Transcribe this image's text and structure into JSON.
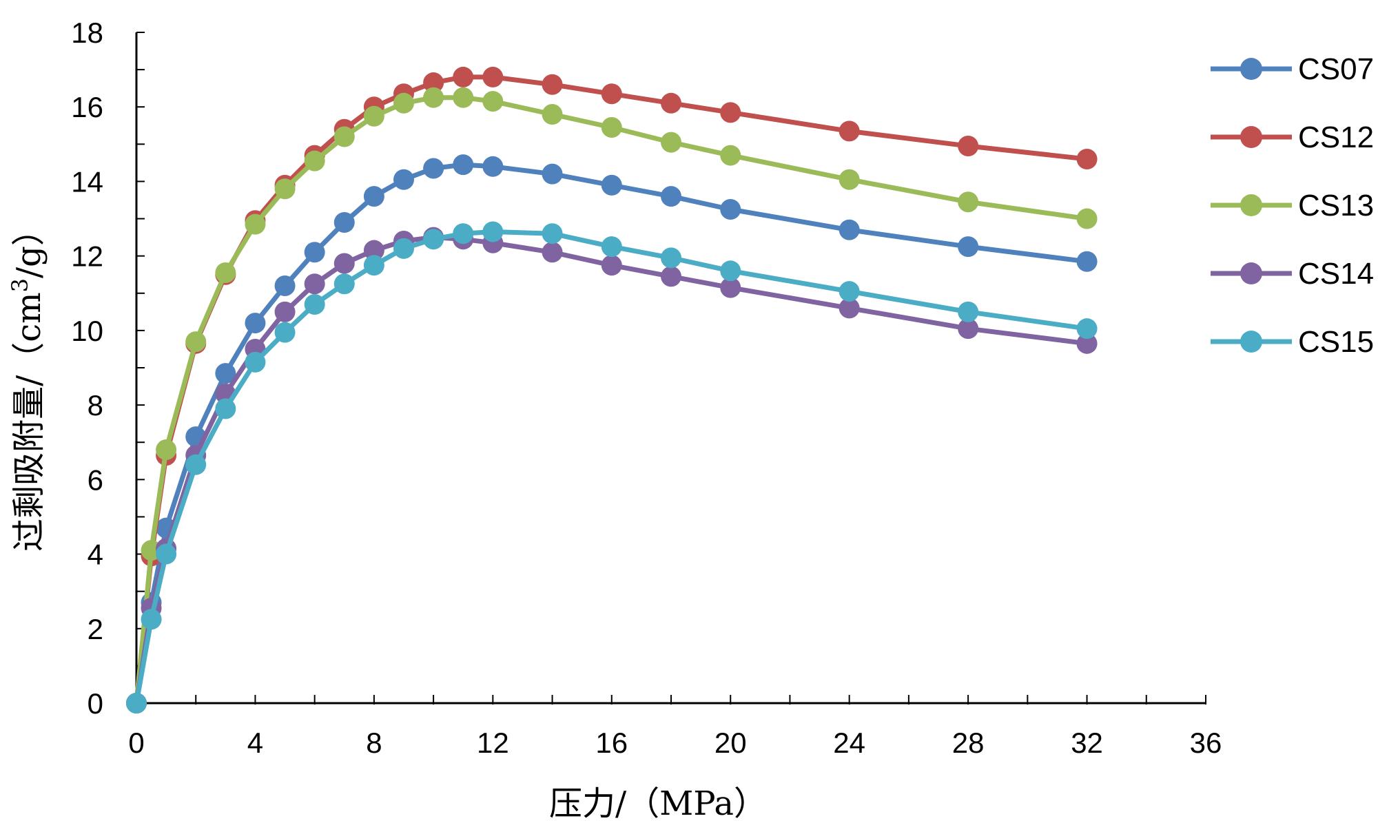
{
  "chart_data": {
    "type": "line",
    "xlabel": "压力/（MPa）",
    "ylabel_main": "过剩吸附量/（cm",
    "ylabel_sup": "3",
    "ylabel_tail": "/g）",
    "xlim": [
      0,
      36
    ],
    "ylim": [
      0,
      18
    ],
    "xticks": [
      0,
      4,
      8,
      12,
      16,
      20,
      24,
      28,
      32,
      36
    ],
    "yticks": [
      0,
      2,
      4,
      6,
      8,
      10,
      12,
      14,
      16,
      18
    ],
    "x": [
      0,
      0.5,
      1,
      2,
      3,
      4,
      5,
      6,
      7,
      8,
      9,
      10,
      11,
      12,
      14,
      16,
      18,
      20,
      24,
      28,
      32
    ],
    "series": [
      {
        "name": "CS07",
        "color": "#4F81BD",
        "values": [
          0,
          2.7,
          4.7,
          7.15,
          8.85,
          10.2,
          11.2,
          12.1,
          12.9,
          13.6,
          14.05,
          14.35,
          14.45,
          14.4,
          14.2,
          13.9,
          13.6,
          13.25,
          12.7,
          12.25,
          11.85
        ]
      },
      {
        "name": "CS12",
        "color": "#C0504D",
        "values": [
          0,
          3.95,
          6.65,
          9.65,
          11.5,
          12.95,
          13.9,
          14.7,
          15.4,
          16.0,
          16.35,
          16.65,
          16.8,
          16.8,
          16.6,
          16.35,
          16.1,
          15.85,
          15.35,
          14.95,
          14.6
        ]
      },
      {
        "name": "CS13",
        "color": "#9BBB59",
        "values": [
          0,
          4.1,
          6.8,
          9.7,
          11.55,
          12.85,
          13.8,
          14.55,
          15.2,
          15.75,
          16.1,
          16.25,
          16.25,
          16.15,
          15.8,
          15.45,
          15.05,
          14.7,
          14.05,
          13.45,
          13.0
        ]
      },
      {
        "name": "CS14",
        "color": "#8064A2",
        "values": [
          0,
          2.55,
          4.15,
          6.65,
          8.3,
          9.5,
          10.5,
          11.25,
          11.8,
          12.15,
          12.4,
          12.5,
          12.45,
          12.35,
          12.1,
          11.75,
          11.45,
          11.15,
          10.6,
          10.05,
          9.65
        ]
      },
      {
        "name": "CS15",
        "color": "#4BACC6",
        "values": [
          0,
          2.25,
          4.0,
          6.4,
          7.9,
          9.15,
          9.95,
          10.7,
          11.25,
          11.75,
          12.2,
          12.45,
          12.6,
          12.65,
          12.6,
          12.25,
          11.95,
          11.6,
          11.05,
          10.5,
          10.05
        ]
      }
    ]
  }
}
